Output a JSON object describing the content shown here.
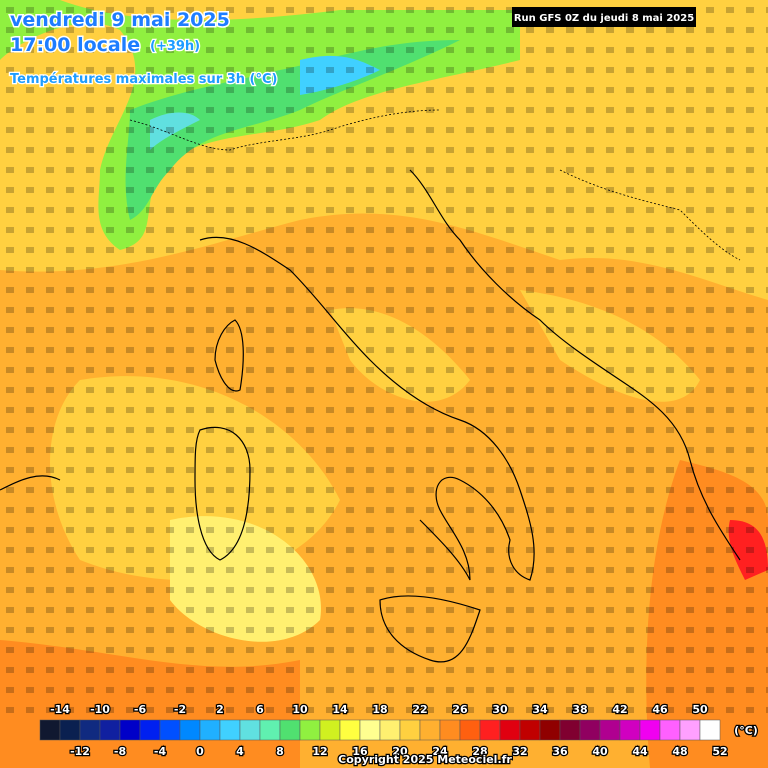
{
  "header": {
    "date": "vendredi 9 mai 2025",
    "time": "17:00 locale",
    "offset": "(+39h)",
    "subtitle": "Températures maximales sur 3h (°C)",
    "run": "Run GFS 0Z du jeudi 8 mai 2025"
  },
  "scale": {
    "min": -16,
    "max": 52,
    "step": 2,
    "colors": [
      "#101830",
      "#0a2050",
      "#102a80",
      "#1020a0",
      "#0000c8",
      "#0020f0",
      "#0050ff",
      "#0088ff",
      "#20b0ff",
      "#40d0ff",
      "#60e0e0",
      "#60f0b0",
      "#50e070",
      "#90f040",
      "#d0f020",
      "#ffff40",
      "#ffff90",
      "#fff070",
      "#ffd040",
      "#ffb030",
      "#ff8c20",
      "#ff6010",
      "#ff2020",
      "#e00010",
      "#c00000",
      "#900000",
      "#800030",
      "#900060",
      "#b00090",
      "#d000c0",
      "#f000f0",
      "#ff60ff",
      "#ffa0ff",
      "#ffffff"
    ],
    "top_labels": [
      -14,
      -10,
      -6,
      -2,
      2,
      6,
      10,
      14,
      18,
      22,
      26,
      30,
      34,
      38,
      42,
      46,
      50
    ],
    "bottom_labels": [
      -12,
      -8,
      -4,
      0,
      4,
      8,
      12,
      16,
      20,
      24,
      28,
      32,
      36,
      40,
      44,
      48,
      52
    ],
    "unit": "(°C)"
  },
  "footer": {
    "copyright": "Copyright 2025 Meteociel.fr"
  }
}
